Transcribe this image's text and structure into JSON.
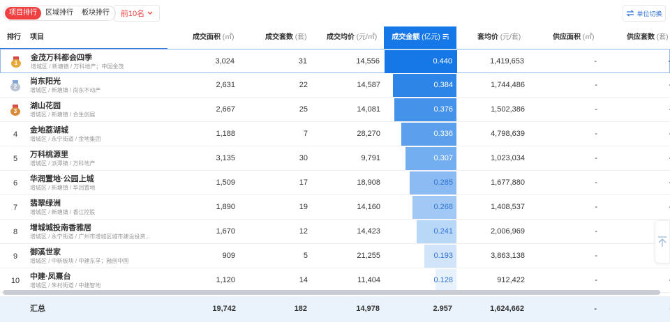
{
  "tabs": [
    {
      "label": "项目排行",
      "active": true
    },
    {
      "label": "区域排行",
      "active": false
    },
    {
      "label": "板块排行",
      "active": false
    }
  ],
  "top_n": {
    "label": "前10名"
  },
  "unit_switch": {
    "label": "单位切换"
  },
  "colors": {
    "accent_red": "#f04142",
    "brand_blue": "#1677e6"
  },
  "table": {
    "headers": {
      "rank": "排行",
      "project": "项目",
      "area": {
        "label": "成交面积",
        "unit": "(㎡)"
      },
      "units": {
        "label": "成交套数",
        "unit": "(套)"
      },
      "avg_price": {
        "label": "成交均价",
        "unit": "(元/㎡)"
      },
      "amount": {
        "label": "成交金额",
        "unit": "(亿元)"
      },
      "unit_price": {
        "label": "套均价",
        "unit": "(元/套)"
      },
      "supply_area": {
        "label": "供应面积",
        "unit": "(㎡)"
      },
      "supply_units": {
        "label": "供应套数",
        "unit": "(套)"
      }
    },
    "rows": [
      {
        "rank": "1",
        "name": "金茂万科都会四季",
        "sub": "增城区 / 新塘镇 / 万科地产；中国金茂",
        "area": "3,024",
        "units": "31",
        "avg": "14,556",
        "amount": "0.440",
        "amount_value": 0.44,
        "unit_price": "1,419,653",
        "supply_area": "-",
        "supply_units": "-"
      },
      {
        "rank": "2",
        "name": "尚东阳光",
        "sub": "增城区 / 新塘镇 / 尚东不动产",
        "area": "2,631",
        "units": "22",
        "avg": "14,587",
        "amount": "0.384",
        "amount_value": 0.384,
        "unit_price": "1,744,486",
        "supply_area": "-",
        "supply_units": "-"
      },
      {
        "rank": "3",
        "name": "湖山花园",
        "sub": "增城区 / 新塘镇 / 合生创展",
        "area": "2,667",
        "units": "25",
        "avg": "14,081",
        "amount": "0.376",
        "amount_value": 0.376,
        "unit_price": "1,502,386",
        "supply_area": "-",
        "supply_units": "-"
      },
      {
        "rank": "4",
        "name": "金地荔湖城",
        "sub": "增城区 / 永宁街道 / 金地集团",
        "area": "1,188",
        "units": "7",
        "avg": "28,270",
        "amount": "0.336",
        "amount_value": 0.336,
        "unit_price": "4,798,639",
        "supply_area": "-",
        "supply_units": "-"
      },
      {
        "rank": "5",
        "name": "万科桃源里",
        "sub": "增城区 / 派潭镇 / 万科地产",
        "area": "3,135",
        "units": "30",
        "avg": "9,791",
        "amount": "0.307",
        "amount_value": 0.307,
        "unit_price": "1,023,034",
        "supply_area": "-",
        "supply_units": "-"
      },
      {
        "rank": "6",
        "name": "华润置地·公园上城",
        "sub": "增城区 / 新塘镇 / 华润置地",
        "area": "1,509",
        "units": "17",
        "avg": "18,908",
        "amount": "0.285",
        "amount_value": 0.285,
        "unit_price": "1,677,880",
        "supply_area": "-",
        "supply_units": "-"
      },
      {
        "rank": "7",
        "name": "翡翠绿洲",
        "sub": "增城区 / 新塘镇 / 香江控股",
        "area": "1,890",
        "units": "19",
        "avg": "14,160",
        "amount": "0.268",
        "amount_value": 0.268,
        "unit_price": "1,408,537",
        "supply_area": "-",
        "supply_units": "-"
      },
      {
        "rank": "8",
        "name": "增城城投南香雅居",
        "sub": "增城区 / 永宁街道 / 广州市增城区城市建设投资...",
        "area": "1,670",
        "units": "12",
        "avg": "14,423",
        "amount": "0.241",
        "amount_value": 0.241,
        "unit_price": "2,006,969",
        "supply_area": "-",
        "supply_units": "-"
      },
      {
        "rank": "9",
        "name": "御溪世家",
        "sub": "增城区 / 中新板块 / 中建东孚；融创中国",
        "area": "909",
        "units": "5",
        "avg": "21,255",
        "amount": "0.193",
        "amount_value": 0.193,
        "unit_price": "3,863,138",
        "supply_area": "-",
        "supply_units": "-"
      },
      {
        "rank": "10",
        "name": "中建·凤熹台",
        "sub": "增城区 / 朱村街道 / 中建智地",
        "area": "1,120",
        "units": "14",
        "avg": "11,404",
        "amount": "0.128",
        "amount_value": 0.128,
        "unit_price": "912,422",
        "supply_area": "-",
        "supply_units": "-"
      }
    ],
    "total": {
      "label": "汇总",
      "area": "19,742",
      "units": "182",
      "avg": "14,978",
      "amount": "2.957",
      "unit_price": "1,624,662",
      "supply_area": "-",
      "supply_units": "-"
    }
  },
  "icons": [
    "swap-icon",
    "chevron-down-icon",
    "sort-desc-icon",
    "medal-gold-icon",
    "medal-silver-icon",
    "medal-bronze-icon",
    "back-to-top-icon"
  ]
}
